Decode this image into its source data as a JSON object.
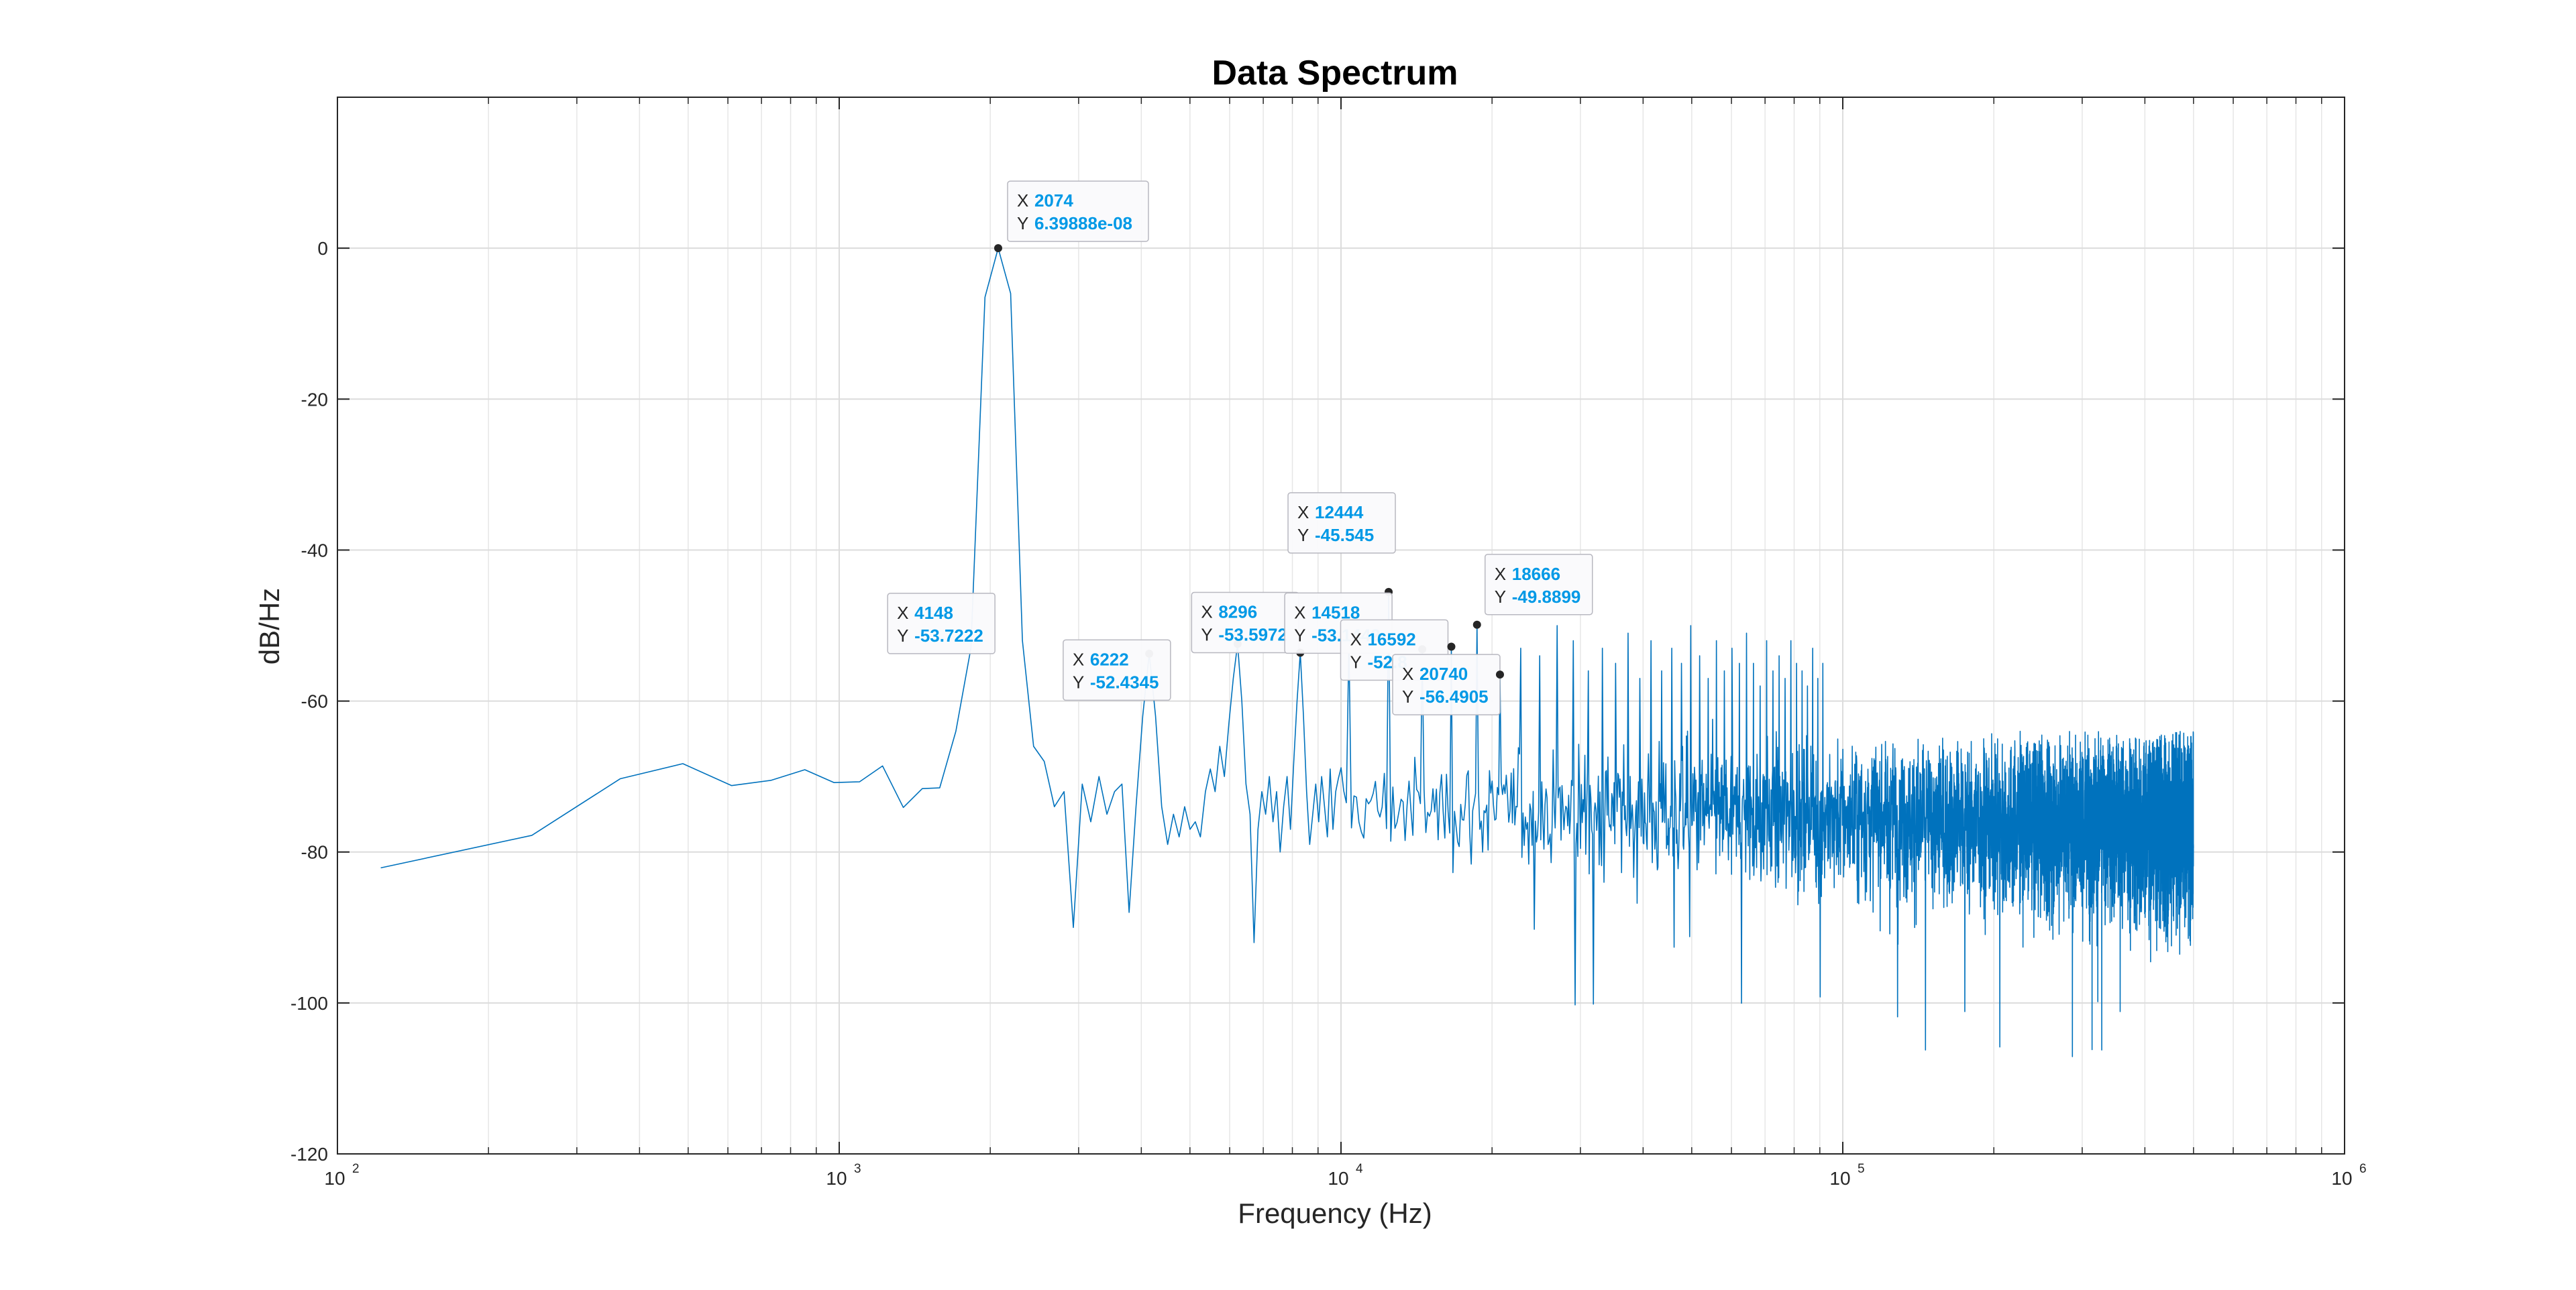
{
  "chart_data": {
    "type": "line",
    "title": "Data Spectrum",
    "xlabel": "Frequency (Hz)",
    "ylabel": "dB/Hz",
    "x_scale": "log",
    "xlim": [
      100,
      1000000
    ],
    "ylim": [
      -120,
      20
    ],
    "grid": true,
    "y_ticks": [
      0,
      -20,
      -40,
      -60,
      -80,
      -100,
      -120
    ],
    "y_tick_labels": [
      "0",
      "-20",
      "-40",
      "-60",
      "-80",
      "-100",
      "-120"
    ],
    "x_ticks": [
      100,
      1000,
      10000,
      100000,
      1000000
    ],
    "x_tick_labels": [
      {
        "base": "10",
        "exp": "2"
      },
      {
        "base": "10",
        "exp": "3"
      },
      {
        "base": "10",
        "exp": "4"
      },
      {
        "base": "10",
        "exp": "5"
      },
      {
        "base": "10",
        "exp": "6"
      }
    ],
    "series": [
      {
        "color": "#0072BD",
        "low_freq_points": [
          [
            122,
            -82.1
          ],
          [
            244,
            -77.8
          ],
          [
            366,
            -70.3
          ],
          [
            488,
            -68.3
          ],
          [
            610,
            -71.2
          ],
          [
            732,
            -70.5
          ],
          [
            854,
            -69.1
          ],
          [
            976,
            -70.8
          ],
          [
            1098,
            -70.7
          ],
          [
            1220,
            -68.6
          ],
          [
            1342,
            -74.1
          ],
          [
            1464,
            -71.6
          ],
          [
            1586,
            -71.5
          ],
          [
            1708,
            -64.0
          ],
          [
            1830,
            -53.0
          ],
          [
            1952,
            -6.5
          ],
          [
            2074,
            0.0
          ],
          [
            2196,
            -6.0
          ],
          [
            2318,
            -52.0
          ],
          [
            2440,
            -66.0
          ],
          [
            2562,
            -68.0
          ],
          [
            2684,
            -74.0
          ],
          [
            2806,
            -72.0
          ],
          [
            2928,
            -90.0
          ],
          [
            3050,
            -71.0
          ],
          [
            3172,
            -76.0
          ],
          [
            3294,
            -70.0
          ],
          [
            3416,
            -75.0
          ],
          [
            3538,
            -72.0
          ],
          [
            3660,
            -71.0
          ],
          [
            3782,
            -88.0
          ],
          [
            3904,
            -74.0
          ],
          [
            4026,
            -62.0
          ],
          [
            4148,
            -53.7222
          ],
          [
            4270,
            -62.0
          ],
          [
            4392,
            -74.0
          ],
          [
            4514,
            -79.0
          ],
          [
            4636,
            -75.0
          ],
          [
            4758,
            -78.0
          ],
          [
            4880,
            -74.0
          ],
          [
            5002,
            -77.0
          ],
          [
            5124,
            -76.0
          ],
          [
            5246,
            -78.0
          ],
          [
            5368,
            -72.0
          ],
          [
            5490,
            -69.0
          ],
          [
            5612,
            -72.0
          ],
          [
            5734,
            -66.0
          ],
          [
            5856,
            -70.0
          ],
          [
            5978,
            -63.0
          ],
          [
            6100,
            -57.0
          ],
          [
            6222,
            -52.4345
          ],
          [
            6344,
            -60.0
          ],
          [
            6466,
            -71.0
          ],
          [
            6588,
            -75.0
          ],
          [
            6710,
            -92.0
          ],
          [
            6832,
            -77.0
          ],
          [
            6954,
            -72.0
          ],
          [
            7076,
            -75.0
          ],
          [
            7198,
            -70.0
          ],
          [
            7320,
            -76.0
          ],
          [
            7442,
            -72.0
          ],
          [
            7564,
            -80.0
          ],
          [
            7686,
            -74.0
          ],
          [
            7808,
            -70.0
          ],
          [
            7930,
            -77.0
          ],
          [
            8052,
            -68.0
          ],
          [
            8174,
            -60.0
          ],
          [
            8296,
            -53.5972
          ],
          [
            8418,
            -62.0
          ],
          [
            8540,
            -72.0
          ],
          [
            8662,
            -79.0
          ],
          [
            8784,
            -75.0
          ],
          [
            8906,
            -71.0
          ],
          [
            9028,
            -76.0
          ],
          [
            9150,
            -70.0
          ],
          [
            9272,
            -74.0
          ],
          [
            9394,
            -78.0
          ],
          [
            9516,
            -69.0
          ],
          [
            9638,
            -77.0
          ],
          [
            9760,
            -72.0
          ]
        ],
        "noise_region": {
          "x_start": 9882,
          "x_end": 500000,
          "bin_spacing": 122,
          "median": -74,
          "typical_min": -90,
          "typical_max": -64,
          "extreme_min": -109.7
        },
        "harmonic_spurs": [
          [
            10370,
            -52.0
          ],
          [
            12444,
            -45.545
          ],
          [
            14518,
            -53.1442
          ],
          [
            16592,
            -52.8
          ],
          [
            18666,
            -49.8899
          ],
          [
            20740,
            -56.4905
          ],
          [
            22814,
            -53.0
          ],
          [
            24888,
            -54.0
          ],
          [
            26962,
            -50.0
          ],
          [
            29036,
            -52.0
          ],
          [
            31110,
            -56.0
          ],
          [
            33184,
            -53.0
          ],
          [
            35258,
            -55.0
          ],
          [
            37332,
            -51.0
          ],
          [
            39406,
            -57.0
          ],
          [
            41480,
            -52.0
          ],
          [
            43554,
            -56.0
          ],
          [
            45628,
            -53.0
          ],
          [
            47702,
            -55.0
          ],
          [
            49776,
            -50.0
          ],
          [
            51850,
            -54.0
          ],
          [
            53924,
            -57.0
          ],
          [
            55998,
            -52.0
          ],
          [
            58072,
            -56.0
          ],
          [
            60146,
            -53.0
          ],
          [
            62220,
            -55.0
          ],
          [
            64294,
            -51.0
          ],
          [
            66368,
            -55.0
          ],
          [
            68442,
            -58.0
          ],
          [
            70516,
            -52.0
          ],
          [
            72590,
            -56.0
          ],
          [
            74664,
            -54.0
          ],
          [
            76738,
            -57.0
          ],
          [
            78812,
            -52.0
          ],
          [
            80886,
            -55.0
          ],
          [
            82960,
            -56.0
          ],
          [
            85034,
            -58.0
          ],
          [
            87108,
            -53.0
          ],
          [
            89182,
            -57.0
          ],
          [
            91256,
            -55.0
          ]
        ]
      }
    ],
    "annotations": [
      {
        "x": 2074,
        "y": "6.39888e-08",
        "point": [
          2074,
          0.0
        ]
      },
      {
        "x": 4148,
        "y": "-53.7222",
        "point": [
          4148,
          -53.7222
        ]
      },
      {
        "x": 6222,
        "y": "-52.4345",
        "point": [
          6222,
          -52.4345
        ]
      },
      {
        "x": 8296,
        "y": "-53.5972",
        "point": [
          8296,
          -53.5972
        ]
      },
      {
        "x": 12444,
        "y": "-45.545",
        "point": [
          12444,
          -45.545
        ]
      },
      {
        "x": 14518,
        "y": "-53.1442",
        "point": [
          14518,
          -53.1442
        ]
      },
      {
        "x": 16592,
        "y": "-52.8",
        "point": [
          16592,
          -52.8
        ]
      },
      {
        "x": 18666,
        "y": "-49.8899",
        "point": [
          18666,
          -49.8899
        ]
      },
      {
        "x": 20740,
        "y": "-56.4905",
        "point": [
          20740,
          -56.4905
        ]
      }
    ],
    "annotation_labels": {
      "x_prefix": "X",
      "y_prefix": "Y"
    }
  }
}
